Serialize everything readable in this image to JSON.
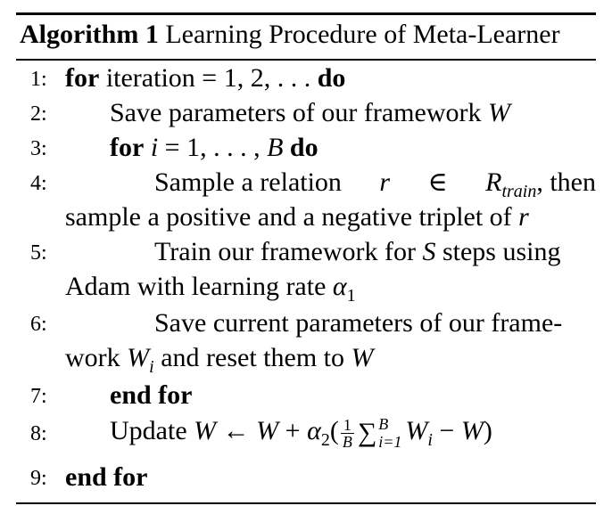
{
  "algorithm": {
    "label": "Algorithm 1",
    "title": "Learning Procedure of Meta-Learner",
    "lines": [
      {
        "num": "1:"
      },
      {
        "num": "2:"
      },
      {
        "num": "3:"
      },
      {
        "num": "4:"
      },
      {
        "num": "5:"
      },
      {
        "num": "6:"
      },
      {
        "num": "7:"
      },
      {
        "num": "8:"
      },
      {
        "num": "9:"
      }
    ],
    "text": {
      "for": "for",
      "do": "do",
      "end_for": "end for",
      "iteration": "iteration",
      "iter_range": "= 1, 2, . . .",
      "save_params": "Save parameters of our framework",
      "W": "W",
      "i": "i",
      "i_range": "= 1, . . . ,",
      "B": "B",
      "sample_a": "Sample a relation",
      "r": "r",
      "in": "∈",
      "R": "R",
      "train": "train",
      "then": ", then",
      "sample_cont": "sample a positive and a negative triplet of",
      "train_fw": "Train our framework for",
      "S": "S",
      "steps_using": "steps using",
      "adam": "Adam with learning rate",
      "alpha": "α",
      "one": "1",
      "two": "2",
      "save_current": "Save current parameters of our frame-",
      "work": "work",
      "reset": "and reset them to",
      "update": "Update",
      "arrow": "←",
      "plus": "+",
      "lparen": "(",
      "rparen": ")",
      "minus": "−",
      "sigma": "∑",
      "i_eq_1": "i=1"
    }
  }
}
